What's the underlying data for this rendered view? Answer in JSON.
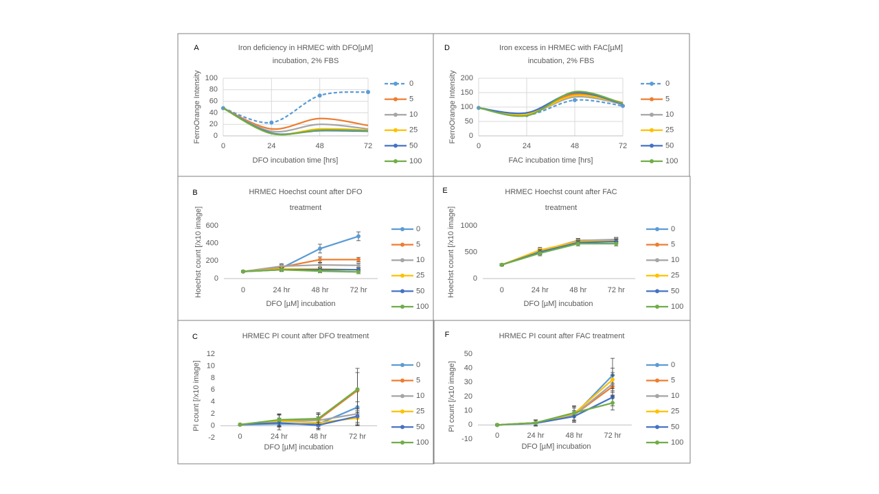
{
  "chart_data": [
    {
      "type": "line",
      "panel": "A",
      "title": [
        "Iron deficiency in HRMEC with DFO[µM]",
        "incubation, 2% FBS"
      ],
      "y_label": "FerroOrange Intensity",
      "x_label": "DFO incubation time [hrs]",
      "x": [
        0,
        24,
        48,
        72
      ],
      "xlim": [
        0,
        72
      ],
      "xticks": [
        0,
        24,
        48,
        72
      ],
      "ylim": [
        0,
        100
      ],
      "yticks": [
        0,
        20,
        40,
        60,
        80,
        100
      ],
      "grid": true,
      "smooth": true,
      "series": [
        {
          "name": "0",
          "color": "#5b9bd5",
          "line_style": "dashed",
          "values": [
            48,
            23,
            70,
            76
          ]
        },
        {
          "name": "5",
          "color": "#ed7d31",
          "values": [
            48,
            12,
            30,
            18
          ]
        },
        {
          "name": "10",
          "color": "#a5a5a5",
          "values": [
            48,
            8,
            20,
            12
          ]
        },
        {
          "name": "25",
          "color": "#ffc000",
          "values": [
            48,
            4,
            12,
            10
          ]
        },
        {
          "name": "50",
          "color": "#4472c4",
          "values": [
            48,
            5,
            9,
            8
          ]
        },
        {
          "name": "100",
          "color": "#70ad47",
          "values": [
            48,
            4,
            10,
            9
          ]
        }
      ]
    },
    {
      "type": "line",
      "panel": "D",
      "title": [
        "Iron excess in HRMEC with FAC[µM]",
        "incubation, 2% FBS"
      ],
      "y_label": "FerroOrange Intensity",
      "x_label": "FAC incubation time [hrs]",
      "x": [
        0,
        24,
        48,
        72
      ],
      "xlim": [
        0,
        72
      ],
      "xticks": [
        0,
        24,
        48,
        72
      ],
      "ylim": [
        0,
        200
      ],
      "yticks": [
        0,
        50,
        100,
        150,
        200
      ],
      "grid": true,
      "smooth": true,
      "series": [
        {
          "name": "0",
          "color": "#5b9bd5",
          "line_style": "dashed",
          "values": [
            97,
            72,
            124,
            104
          ]
        },
        {
          "name": "5",
          "color": "#ed7d31",
          "values": [
            97,
            75,
            145,
            115
          ]
        },
        {
          "name": "10",
          "color": "#a5a5a5",
          "values": [
            97,
            75,
            135,
            110
          ]
        },
        {
          "name": "25",
          "color": "#ffc000",
          "values": [
            97,
            75,
            140,
            112
          ]
        },
        {
          "name": "50",
          "color": "#4472c4",
          "values": [
            97,
            80,
            150,
            110
          ]
        },
        {
          "name": "100",
          "color": "#70ad47",
          "values": [
            97,
            70,
            153,
            112
          ]
        }
      ]
    },
    {
      "type": "line",
      "panel": "B",
      "title": [
        "HRMEC Hoechst count after DFO",
        "treatment"
      ],
      "y_label": "Hoechst count [/x10 image]",
      "x_label": "DFO [µM] incubation",
      "categories": [
        "0",
        "24 hr",
        "48 hr",
        "72 hr"
      ],
      "ylim": [
        0,
        600
      ],
      "yticks": [
        0,
        200,
        400,
        600
      ],
      "grid": false,
      "series": [
        {
          "name": "0",
          "color": "#5b9bd5",
          "values": [
            80,
            120,
            340,
            480
          ],
          "errors": [
            10,
            30,
            50,
            50
          ]
        },
        {
          "name": "5",
          "color": "#ed7d31",
          "values": [
            80,
            130,
            215,
            215
          ],
          "errors": [
            10,
            30,
            30,
            25
          ]
        },
        {
          "name": "10",
          "color": "#a5a5a5",
          "values": [
            80,
            140,
            155,
            150
          ],
          "errors": [
            10,
            30,
            25,
            25
          ]
        },
        {
          "name": "25",
          "color": "#ffc000",
          "values": [
            80,
            110,
            110,
            100
          ],
          "errors": [
            10,
            20,
            20,
            20
          ]
        },
        {
          "name": "50",
          "color": "#4472c4",
          "values": [
            80,
            100,
            100,
            100
          ],
          "errors": [
            10,
            20,
            20,
            20
          ]
        },
        {
          "name": "100",
          "color": "#70ad47",
          "values": [
            80,
            100,
            85,
            75
          ],
          "errors": [
            10,
            20,
            20,
            20
          ]
        }
      ]
    },
    {
      "type": "line",
      "panel": "E",
      "title": [
        "HRMEC Hoechst count after FAC",
        "treatment"
      ],
      "y_label": "Hoechst count [/x10 image]",
      "x_label": "DFO [µM] incubation",
      "categories": [
        "0",
        "24 hr",
        "48 hr",
        "72 hr"
      ],
      "ylim": [
        0,
        1000
      ],
      "yticks": [
        0,
        500,
        1000
      ],
      "grid": false,
      "series": [
        {
          "name": "0",
          "color": "#5b9bd5",
          "values": [
            260,
            510,
            700,
            710
          ],
          "errors": [
            20,
            50,
            40,
            40
          ]
        },
        {
          "name": "5",
          "color": "#ed7d31",
          "values": [
            260,
            520,
            720,
            730
          ],
          "errors": [
            20,
            50,
            40,
            40
          ]
        },
        {
          "name": "10",
          "color": "#a5a5a5",
          "values": [
            260,
            510,
            720,
            740
          ],
          "errors": [
            20,
            50,
            40,
            40
          ]
        },
        {
          "name": "25",
          "color": "#ffc000",
          "values": [
            260,
            540,
            700,
            710
          ],
          "errors": [
            20,
            50,
            40,
            40
          ]
        },
        {
          "name": "50",
          "color": "#4472c4",
          "values": [
            260,
            500,
            680,
            700
          ],
          "errors": [
            20,
            50,
            40,
            40
          ]
        },
        {
          "name": "100",
          "color": "#70ad47",
          "values": [
            260,
            480,
            660,
            660
          ],
          "errors": [
            20,
            50,
            40,
            40
          ]
        }
      ]
    },
    {
      "type": "line",
      "panel": "C",
      "title": [
        "HRMEC PI count after DFO treatment"
      ],
      "y_label": "PI count [/x10 image]",
      "x_label": "DFO [µM] incubation",
      "categories": [
        "0",
        "24 hr",
        "48 hr",
        "72 hr"
      ],
      "ylim": [
        -2,
        12
      ],
      "yticks": [
        -2,
        0,
        2,
        4,
        6,
        8,
        10,
        12
      ],
      "grid": false,
      "series": [
        {
          "name": "0",
          "color": "#5b9bd5",
          "values": [
            0.2,
            0.3,
            0.3,
            3.1
          ],
          "errors": [
            0.1,
            1,
            1,
            3
          ]
        },
        {
          "name": "5",
          "color": "#ed7d31",
          "values": [
            0.2,
            0.9,
            1.0,
            5.9
          ],
          "errors": [
            0.1,
            1,
            1,
            3
          ]
        },
        {
          "name": "10",
          "color": "#a5a5a5",
          "values": [
            0.2,
            0.8,
            0.9,
            2.0
          ],
          "errors": [
            0.1,
            1,
            1,
            2
          ]
        },
        {
          "name": "25",
          "color": "#ffc000",
          "values": [
            0.2,
            0.8,
            0.5,
            1.3
          ],
          "errors": [
            0.1,
            1,
            1,
            1
          ]
        },
        {
          "name": "50",
          "color": "#4472c4",
          "values": [
            0.2,
            0.5,
            0.1,
            1.6
          ],
          "errors": [
            0.1,
            0.5,
            0.5,
            1
          ]
        },
        {
          "name": "100",
          "color": "#70ad47",
          "values": [
            0.2,
            1.0,
            1.2,
            6.1
          ],
          "errors": [
            0.1,
            1,
            1,
            3.5
          ]
        }
      ]
    },
    {
      "type": "line",
      "panel": "F",
      "title": [
        "HRMEC PI count after FAC treatment"
      ],
      "y_label": "PI count [/x10 image]",
      "x_label": "DFO [µM] incubation",
      "categories": [
        "0",
        "24 hr",
        "48 hr",
        "72 hr"
      ],
      "ylim": [
        -10,
        50
      ],
      "yticks": [
        -10,
        0,
        10,
        20,
        30,
        40,
        50
      ],
      "grid": false,
      "series": [
        {
          "name": "0",
          "color": "#5b9bd5",
          "values": [
            0,
            1.5,
            7,
            35
          ],
          "errors": [
            0.5,
            2,
            5,
            12
          ]
        },
        {
          "name": "5",
          "color": "#ed7d31",
          "values": [
            0,
            1.5,
            7,
            27
          ],
          "errors": [
            0.5,
            2,
            5,
            8
          ]
        },
        {
          "name": "10",
          "color": "#a5a5a5",
          "values": [
            0,
            1.5,
            7,
            29
          ],
          "errors": [
            0.5,
            2,
            5,
            8
          ]
        },
        {
          "name": "25",
          "color": "#ffc000",
          "values": [
            0,
            1.5,
            8,
            32
          ],
          "errors": [
            0.5,
            2,
            5,
            8
          ]
        },
        {
          "name": "50",
          "color": "#4472c4",
          "values": [
            0,
            1.2,
            6,
            19.5
          ],
          "errors": [
            0.5,
            2,
            4,
            6
          ]
        },
        {
          "name": "100",
          "color": "#70ad47",
          "values": [
            0,
            1.5,
            8.5,
            15.5
          ],
          "errors": [
            0.5,
            2,
            5,
            5
          ]
        }
      ]
    }
  ]
}
